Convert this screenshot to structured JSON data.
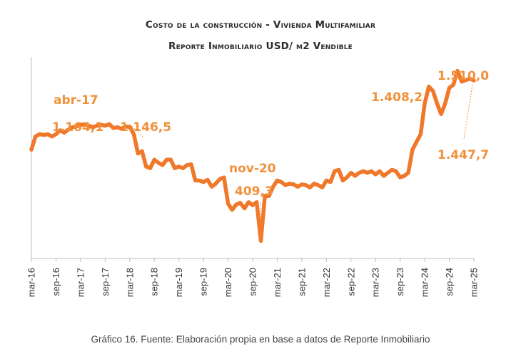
{
  "chart_data": {
    "type": "line",
    "title": "Costo de la construcción - Vivienda Multifamiliar",
    "subtitle": "Reporte Inmobiliario  USD/ m2 Vendible",
    "xlabel": "",
    "ylabel": "",
    "x_ticks": [
      "mar-16",
      "sep-16",
      "mar-17",
      "sep-17",
      "mar-18",
      "sep-18",
      "mar-19",
      "sep-19",
      "mar-20",
      "sep-20",
      "mar-21",
      "sep-21",
      "mar-22",
      "sep-22",
      "mar-23",
      "sep-23",
      "mar-24",
      "sep-24",
      "mar-25"
    ],
    "ylim": [
      300,
      1600
    ],
    "grid": false,
    "legend": "none",
    "color": "#f0782a",
    "series": [
      {
        "x": [
          "mar-16",
          "abr-16",
          "may-16",
          "jun-16",
          "jul-16",
          "ago-16",
          "sep-16",
          "oct-16",
          "nov-16",
          "dic-16",
          "ene-17",
          "feb-17",
          "mar-17",
          "abr-17",
          "may-17",
          "jun-17",
          "jul-17",
          "ago-17",
          "sep-17",
          "oct-17",
          "nov-17",
          "dic-17",
          "ene-18",
          "feb-18",
          "mar-18",
          "abr-18",
          "may-18",
          "jun-18",
          "jul-18",
          "ago-18",
          "sep-18",
          "oct-18",
          "nov-18",
          "dic-18",
          "ene-19",
          "feb-19",
          "mar-19",
          "abr-19",
          "may-19",
          "jun-19",
          "jul-19",
          "ago-19",
          "sep-19",
          "oct-19",
          "nov-19",
          "dic-19",
          "ene-20",
          "feb-20",
          "mar-20",
          "abr-20",
          "may-20",
          "jun-20",
          "jul-20",
          "ago-20",
          "sep-20",
          "oct-20",
          "nov-20",
          "dic-20",
          "ene-21",
          "feb-21",
          "mar-21",
          "abr-21",
          "may-21",
          "jun-21",
          "jul-21",
          "ago-21",
          "sep-21",
          "oct-21",
          "nov-21",
          "dic-21",
          "ene-22",
          "feb-22",
          "mar-22",
          "abr-22",
          "may-22",
          "jun-22",
          "jul-22",
          "ago-22",
          "sep-22",
          "oct-22",
          "nov-22",
          "dic-22",
          "ene-23",
          "feb-23",
          "mar-23",
          "abr-23",
          "may-23",
          "jun-23",
          "jul-23",
          "ago-23",
          "sep-23",
          "oct-23",
          "nov-23",
          "dic-23",
          "ene-24",
          "feb-24",
          "mar-24",
          "abr-24",
          "may-24",
          "jun-24",
          "jul-24",
          "ago-24",
          "sep-24",
          "oct-24",
          "nov-24",
          "dic-24",
          "ene-25",
          "feb-25",
          "mar-25"
        ],
        "y": [
          1000,
          1085,
          1100,
          1095,
          1100,
          1085,
          1100,
          1125,
          1110,
          1130,
          1145,
          1150,
          1160,
          1164.1,
          1155,
          1145,
          1155,
          1160,
          1155,
          1165,
          1140,
          1145,
          1135,
          1150,
          1146.5,
          1100,
          975,
          990,
          890,
          880,
          935,
          915,
          900,
          935,
          935,
          880,
          890,
          880,
          900,
          905,
          800,
          800,
          790,
          805,
          760,
          780,
          810,
          820,
          650,
          610,
          645,
          655,
          620,
          660,
          640,
          660,
          409.3,
          700,
          700,
          760,
          800,
          790,
          770,
          780,
          775,
          760,
          775,
          770,
          755,
          780,
          770,
          755,
          800,
          790,
          860,
          870,
          800,
          820,
          850,
          830,
          850,
          860,
          850,
          860,
          840,
          860,
          830,
          850,
          870,
          860,
          820,
          830,
          850,
          1000,
          1050,
          1100,
          1300,
          1408.2,
          1380,
          1300,
          1230,
          1300,
          1400,
          1420,
          1510,
          1440,
          1450,
          1460,
          1447.7
        ]
      }
    ],
    "annotations": [
      {
        "label": "abr-17",
        "value": "1.164,1"
      },
      {
        "label": "",
        "value": "1.146,5"
      },
      {
        "label": "nov-20",
        "value": "409,3"
      },
      {
        "label": "",
        "value": "1.408,2"
      },
      {
        "label": "",
        "value": "1.510,0"
      },
      {
        "label": "",
        "value": "1.447,7"
      }
    ]
  },
  "caption": "Gráfico 16. Fuente: Elaboración propia en base a datos de Reporte Inmobiliario"
}
